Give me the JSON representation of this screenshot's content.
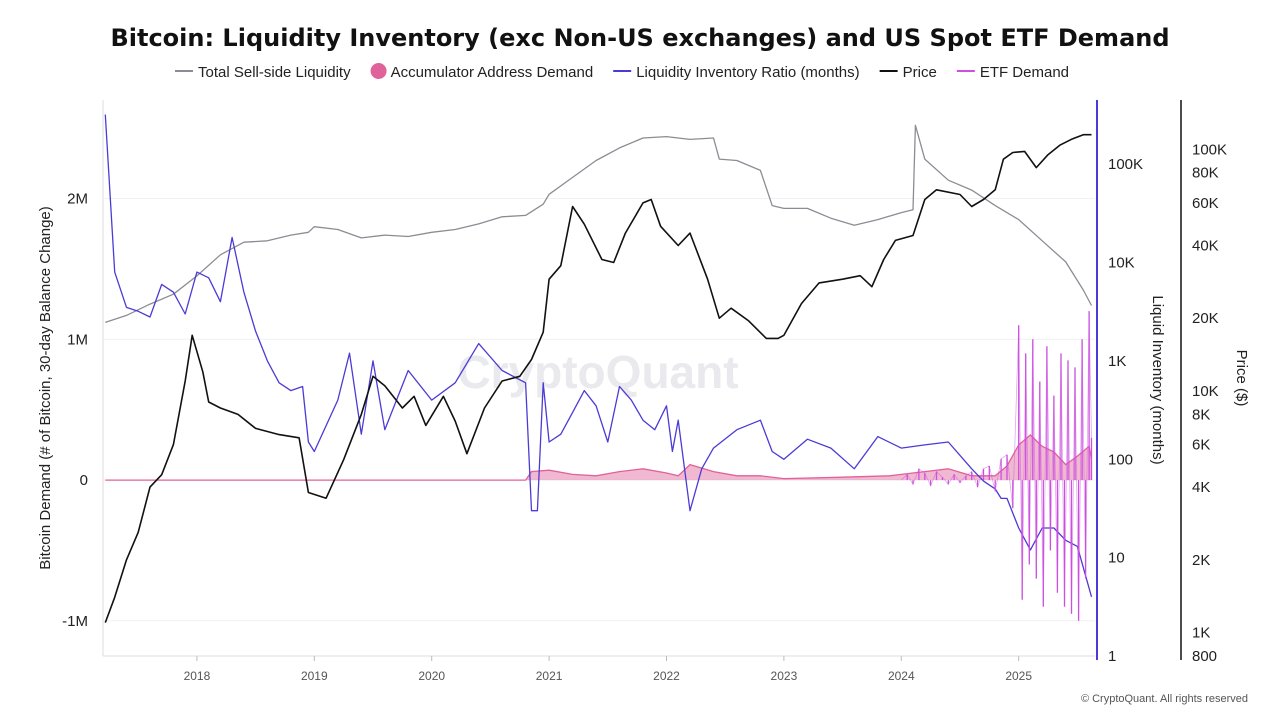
{
  "chart_data": {
    "type": "line",
    "title": "Bitcoin: Liquidity Inventory (exc Non-US exchanges) and US Spot ETF Demand",
    "watermark": "CryptoQuant",
    "copyright": "© CryptoQuant. All rights reserved",
    "legend_position": "top-center",
    "grid": true,
    "x_ticks": [
      "2018",
      "2019",
      "2020",
      "2021",
      "2022",
      "2023",
      "2024",
      "2025"
    ],
    "x_range": [
      2017.2,
      2025.65
    ],
    "axes": {
      "left": {
        "label": "Bitcoin Demand (# of Bitcoin, 30-day Balance Change)",
        "ticks": [
          {
            "v": -1000000,
            "label": "-1M"
          },
          {
            "v": 0,
            "label": "0"
          },
          {
            "v": 1000000,
            "label": "1M"
          },
          {
            "v": 2000000,
            "label": "2M"
          }
        ],
        "range": [
          -1250000,
          2700000
        ]
      },
      "right_inner": {
        "label": "Liquid Inventory (months)",
        "scale": "log",
        "ticks": [
          {
            "v": 1,
            "label": "1"
          },
          {
            "v": 10,
            "label": "10"
          },
          {
            "v": 100,
            "label": "100"
          },
          {
            "v": 1000,
            "label": "1K"
          },
          {
            "v": 10000,
            "label": "10K"
          },
          {
            "v": 100000,
            "label": "100K"
          }
        ],
        "range": [
          1,
          450000
        ]
      },
      "right_outer": {
        "label": "Price ($)",
        "scale": "log",
        "ticks": [
          {
            "v": 800,
            "label": "800"
          },
          {
            "v": 1000,
            "label": "1K"
          },
          {
            "v": 2000,
            "label": "2K"
          },
          {
            "v": 4000,
            "label": "4K"
          },
          {
            "v": 6000,
            "label": "6K"
          },
          {
            "v": 8000,
            "label": "8K"
          },
          {
            "v": 10000,
            "label": "10K"
          },
          {
            "v": 20000,
            "label": "20K"
          },
          {
            "v": 40000,
            "label": "40K"
          },
          {
            "v": 60000,
            "label": "60K"
          },
          {
            "v": 80000,
            "label": "80K"
          },
          {
            "v": 100000,
            "label": "100K"
          }
        ],
        "range": [
          800,
          160000
        ]
      }
    },
    "series": [
      {
        "name": "Total Sell-side Liquidity",
        "key": "supply",
        "axis": "left",
        "color": "#8c8c94",
        "legend_marker": "line",
        "x": [
          2017.22,
          2017.4,
          2017.6,
          2017.8,
          2018.0,
          2018.2,
          2018.4,
          2018.6,
          2018.8,
          2018.95,
          2019.0,
          2019.2,
          2019.4,
          2019.6,
          2019.8,
          2020.0,
          2020.2,
          2020.4,
          2020.6,
          2020.8,
          2020.95,
          2021.0,
          2021.2,
          2021.4,
          2021.6,
          2021.8,
          2022.0,
          2022.2,
          2022.4,
          2022.45,
          2022.6,
          2022.8,
          2022.9,
          2023.0,
          2023.2,
          2023.4,
          2023.6,
          2023.8,
          2024.0,
          2024.1,
          2024.12,
          2024.2,
          2024.4,
          2024.6,
          2024.8,
          2025.0,
          2025.2,
          2025.4,
          2025.55,
          2025.62
        ],
        "y": [
          1120000,
          1170000,
          1250000,
          1320000,
          1450000,
          1600000,
          1690000,
          1700000,
          1740000,
          1760000,
          1800000,
          1780000,
          1720000,
          1740000,
          1730000,
          1760000,
          1780000,
          1820000,
          1870000,
          1880000,
          1960000,
          2030000,
          2150000,
          2270000,
          2360000,
          2430000,
          2440000,
          2420000,
          2430000,
          2280000,
          2270000,
          2200000,
          1950000,
          1930000,
          1930000,
          1860000,
          1810000,
          1850000,
          1900000,
          1920000,
          2520000,
          2280000,
          2130000,
          2060000,
          1950000,
          1850000,
          1700000,
          1550000,
          1350000,
          1240000
        ]
      },
      {
        "name": "Accumulator Address Demand",
        "key": "accumulator",
        "axis": "left",
        "color": "#e0629b",
        "legend_marker": "dot",
        "x": [
          2017.22,
          2020.8,
          2020.85,
          2021.0,
          2021.2,
          2021.4,
          2021.6,
          2021.8,
          2022.0,
          2022.1,
          2022.2,
          2022.4,
          2022.6,
          2022.8,
          2023.0,
          2023.5,
          2023.9,
          2024.0,
          2024.2,
          2024.4,
          2024.6,
          2024.8,
          2024.9,
          2025.0,
          2025.1,
          2025.2,
          2025.3,
          2025.4,
          2025.5,
          2025.6,
          2025.62
        ],
        "y": [
          0,
          0,
          60000,
          70000,
          40000,
          30000,
          60000,
          80000,
          50000,
          30000,
          110000,
          60000,
          30000,
          30000,
          10000,
          20000,
          30000,
          40000,
          60000,
          80000,
          30000,
          30000,
          100000,
          250000,
          320000,
          240000,
          200000,
          110000,
          170000,
          240000,
          150000
        ]
      },
      {
        "name": "Liquidity Inventory Ratio (months)",
        "key": "ratio",
        "axis": "right_inner",
        "color": "#4b3bd6",
        "legend_marker": "line",
        "x": [
          2017.22,
          2017.3,
          2017.4,
          2017.5,
          2017.6,
          2017.7,
          2017.8,
          2017.9,
          2018.0,
          2018.1,
          2018.2,
          2018.3,
          2018.4,
          2018.5,
          2018.6,
          2018.7,
          2018.8,
          2018.9,
          2018.95,
          2019.0,
          2019.2,
          2019.3,
          2019.4,
          2019.5,
          2019.6,
          2019.8,
          2020.0,
          2020.2,
          2020.4,
          2020.6,
          2020.8,
          2020.85,
          2020.9,
          2020.95,
          2021.0,
          2021.1,
          2021.2,
          2021.3,
          2021.4,
          2021.5,
          2021.6,
          2021.7,
          2021.8,
          2021.9,
          2022.0,
          2022.05,
          2022.1,
          2022.2,
          2022.3,
          2022.4,
          2022.6,
          2022.8,
          2022.9,
          2023.0,
          2023.2,
          2023.4,
          2023.6,
          2023.8,
          2024.0,
          2024.2,
          2024.4,
          2024.6,
          2024.7,
          2024.8,
          2024.85,
          2024.9,
          2025.0,
          2025.1,
          2025.2,
          2025.3,
          2025.4,
          2025.5,
          2025.62
        ],
        "y": [
          320000,
          8000,
          3500,
          3200,
          2800,
          6000,
          5000,
          3000,
          8000,
          7000,
          4000,
          18000,
          5000,
          2000,
          1000,
          600,
          500,
          550,
          150,
          120,
          400,
          1200,
          180,
          1000,
          200,
          800,
          400,
          600,
          1500,
          800,
          600,
          30,
          30,
          600,
          150,
          180,
          300,
          500,
          350,
          150,
          550,
          400,
          250,
          200,
          350,
          120,
          250,
          30,
          80,
          130,
          200,
          250,
          120,
          100,
          160,
          130,
          80,
          170,
          130,
          140,
          150,
          80,
          60,
          50,
          40,
          40,
          20,
          12,
          20,
          20,
          15,
          13,
          4
        ]
      },
      {
        "name": "Price",
        "key": "price",
        "axis": "right_outer",
        "color": "#111111",
        "legend_marker": "line",
        "x": [
          2017.22,
          2017.3,
          2017.4,
          2017.5,
          2017.6,
          2017.7,
          2017.8,
          2017.9,
          2017.96,
          2018.05,
          2018.1,
          2018.2,
          2018.35,
          2018.5,
          2018.7,
          2018.87,
          2018.95,
          2019.1,
          2019.25,
          2019.4,
          2019.5,
          2019.6,
          2019.75,
          2019.85,
          2019.95,
          2020.1,
          2020.2,
          2020.3,
          2020.45,
          2020.6,
          2020.75,
          2020.85,
          2020.95,
          2021.0,
          2021.1,
          2021.2,
          2021.3,
          2021.45,
          2021.55,
          2021.65,
          2021.8,
          2021.87,
          2021.95,
          2022.1,
          2022.2,
          2022.35,
          2022.45,
          2022.55,
          2022.7,
          2022.85,
          2022.95,
          2023.0,
          2023.15,
          2023.3,
          2023.5,
          2023.65,
          2023.75,
          2023.85,
          2023.95,
          2024.1,
          2024.2,
          2024.3,
          2024.5,
          2024.6,
          2024.7,
          2024.8,
          2024.87,
          2024.95,
          2025.05,
          2025.15,
          2025.25,
          2025.35,
          2025.45,
          2025.55,
          2025.62
        ],
        "y": [
          1100,
          1400,
          2000,
          2600,
          4000,
          4500,
          6000,
          11000,
          17000,
          12000,
          9000,
          8500,
          8000,
          7000,
          6600,
          6400,
          3800,
          3600,
          5200,
          8000,
          11500,
          10500,
          8500,
          9500,
          7200,
          9500,
          7500,
          5500,
          8500,
          11000,
          11500,
          13500,
          17500,
          29000,
          33000,
          58000,
          49000,
          35000,
          34000,
          45000,
          60000,
          62000,
          48000,
          40000,
          45000,
          29000,
          20000,
          22000,
          19500,
          16500,
          16500,
          17000,
          23000,
          28000,
          29000,
          30000,
          27000,
          35000,
          42000,
          44000,
          62000,
          68000,
          65000,
          58000,
          62000,
          68000,
          91000,
          97000,
          98000,
          84000,
          95000,
          104000,
          110000,
          115000,
          115000
        ]
      },
      {
        "name": "ETF Demand",
        "key": "etf",
        "axis": "left",
        "color": "#cc4fe0",
        "legend_marker": "line",
        "x": [
          2024.0,
          2024.05,
          2024.1,
          2024.15,
          2024.2,
          2024.25,
          2024.3,
          2024.35,
          2024.4,
          2024.45,
          2024.5,
          2024.55,
          2024.6,
          2024.65,
          2024.7,
          2024.75,
          2024.8,
          2024.85,
          2024.9,
          2024.95,
          2025.0,
          2025.03,
          2025.06,
          2025.09,
          2025.12,
          2025.15,
          2025.18,
          2025.21,
          2025.24,
          2025.27,
          2025.3,
          2025.33,
          2025.36,
          2025.39,
          2025.42,
          2025.45,
          2025.48,
          2025.51,
          2025.54,
          2025.57,
          2025.6,
          2025.62
        ],
        "y": [
          0,
          40000,
          -30000,
          80000,
          50000,
          -40000,
          60000,
          20000,
          -30000,
          40000,
          -20000,
          30000,
          60000,
          -50000,
          80000,
          100000,
          -80000,
          150000,
          180000,
          -200000,
          1100000,
          -850000,
          900000,
          -600000,
          1000000,
          -700000,
          700000,
          -900000,
          950000,
          -500000,
          600000,
          -800000,
          900000,
          -900000,
          850000,
          -950000,
          800000,
          -1000000,
          1000000,
          -700000,
          1200000,
          300000
        ]
      }
    ]
  }
}
